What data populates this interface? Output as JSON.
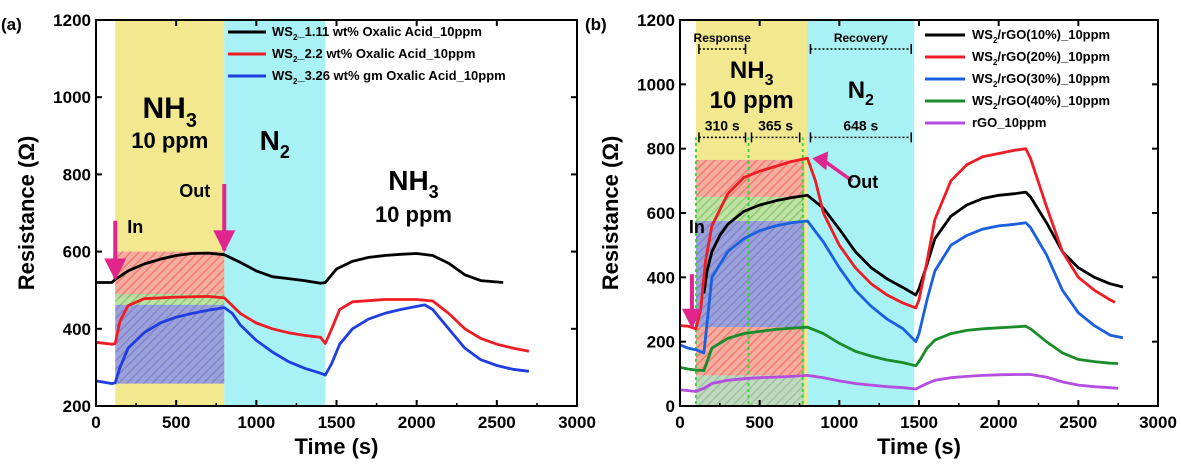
{
  "chart_data": [
    {
      "type": "line",
      "panel_label": "(a)",
      "xlabel": "Time (s)",
      "ylabel": "Resistance (Ω)",
      "xlim": [
        0,
        3000
      ],
      "ylim": [
        200,
        1200
      ],
      "xticks": [
        0,
        500,
        1000,
        1500,
        2000,
        2500,
        3000
      ],
      "yticks": [
        200,
        400,
        600,
        800,
        1000,
        1200
      ],
      "legend_position": "top-right",
      "regions": [
        {
          "x0": 120,
          "x1": 800,
          "color": "#f2e88f",
          "label_main": "NH",
          "label_sub": "3",
          "label_conc": "10 ppm"
        },
        {
          "x0": 800,
          "x1": 1430,
          "color": "#a8f1f5",
          "label_main": "N",
          "label_sub": "2",
          "label_conc": ""
        }
      ],
      "free_label": {
        "main": "NH",
        "sub": "3",
        "conc": "10 ppm"
      },
      "hatched_boxes": [
        {
          "x0": 120,
          "x1": 800,
          "y0": 480,
          "y1": 600,
          "color": "#f28c8c"
        },
        {
          "x0": 120,
          "x1": 800,
          "y0": 460,
          "y1": 490,
          "color": "#8fd48a"
        },
        {
          "x0": 120,
          "x1": 800,
          "y0": 258,
          "y1": 462,
          "color": "#8a8cf2"
        }
      ],
      "annotations": [
        {
          "text": "In",
          "x": 120,
          "arrow_from_y": 680,
          "arrow_to_y": 525,
          "color": "#2a8fd6"
        },
        {
          "text": "Out",
          "x": 800,
          "arrow_from_y": 775,
          "arrow_to_y": 598,
          "color": "#2a8fd6"
        }
      ],
      "series": [
        {
          "name_main": "WS",
          "name_sub": "2",
          "name_rest": "_1.11 wt% Oxalic Acid_10ppm",
          "color": "#000000",
          "x": [
            0,
            100,
            120,
            200,
            300,
            400,
            500,
            600,
            700,
            800,
            900,
            1000,
            1100,
            1200,
            1300,
            1400,
            1430,
            1500,
            1600,
            1700,
            1800,
            1900,
            2000,
            2100,
            2200,
            2300,
            2400,
            2540
          ],
          "y": [
            520,
            520,
            528,
            550,
            568,
            580,
            590,
            595,
            596,
            592,
            572,
            550,
            535,
            530,
            525,
            518,
            520,
            555,
            575,
            585,
            590,
            593,
            595,
            590,
            570,
            540,
            525,
            520
          ]
        },
        {
          "name_main": "WS",
          "name_sub": "2",
          "name_rest": "_2.2 wt% Oxalic Acid_10ppm",
          "color": "#ee1c24",
          "x": [
            0,
            100,
            120,
            150,
            200,
            300,
            500,
            700,
            800,
            850,
            900,
            1000,
            1100,
            1200,
            1300,
            1400,
            1430,
            1470,
            1520,
            1600,
            1800,
            2000,
            2100,
            2200,
            2300,
            2400,
            2500,
            2600,
            2700
          ],
          "y": [
            365,
            360,
            362,
            420,
            460,
            478,
            482,
            484,
            480,
            460,
            440,
            415,
            400,
            390,
            383,
            378,
            362,
            400,
            450,
            470,
            476,
            476,
            472,
            440,
            400,
            375,
            360,
            350,
            342
          ]
        },
        {
          "name_main": "WS",
          "name_sub": "2",
          "name_rest": "_3.26 wt% gm Oxalic Acid_10ppm",
          "color": "#1f3de0",
          "x": [
            0,
            100,
            120,
            150,
            200,
            300,
            400,
            500,
            600,
            700,
            800,
            850,
            900,
            1000,
            1100,
            1200,
            1300,
            1400,
            1430,
            1470,
            1520,
            1600,
            1700,
            1800,
            1900,
            2000,
            2050,
            2100,
            2200,
            2300,
            2400,
            2500,
            2600,
            2700
          ],
          "y": [
            265,
            258,
            260,
            300,
            350,
            390,
            415,
            430,
            440,
            448,
            455,
            440,
            410,
            370,
            340,
            315,
            298,
            285,
            280,
            310,
            360,
            400,
            425,
            440,
            450,
            458,
            462,
            450,
            400,
            350,
            320,
            305,
            295,
            290
          ]
        }
      ]
    },
    {
      "type": "line",
      "panel_label": "(b)",
      "xlabel": "Time (s)",
      "ylabel": "Resistance (Ω)",
      "xlim": [
        0,
        3000
      ],
      "ylim": [
        0,
        1200
      ],
      "xticks": [
        0,
        500,
        1000,
        1500,
        2000,
        2500,
        3000
      ],
      "yticks": [
        0,
        200,
        400,
        600,
        800,
        1000,
        1200
      ],
      "legend_position": "top-right",
      "regions": [
        {
          "x0": 100,
          "x1": 800,
          "color": "#f2e88f",
          "label_main": "NH",
          "label_sub": "3",
          "label_conc": "10 ppm"
        },
        {
          "x0": 800,
          "x1": 1470,
          "color": "#a8f1f5",
          "label_main": "N",
          "label_sub": "2",
          "label_conc": ""
        }
      ],
      "hatched_boxes": [
        {
          "x0": 100,
          "x1": 780,
          "y0": 650,
          "y1": 765,
          "color": "#f28c8c"
        },
        {
          "x0": 100,
          "x1": 780,
          "y0": 575,
          "y1": 650,
          "color": "#8fd48a"
        },
        {
          "x0": 100,
          "x1": 780,
          "y0": 245,
          "y1": 575,
          "color": "#8a8cf2"
        },
        {
          "x0": 100,
          "x1": 780,
          "y0": 95,
          "y1": 245,
          "color": "#f28c8c"
        },
        {
          "x0": 100,
          "x1": 780,
          "y0": 0,
          "y1": 95,
          "color": "#9ac9b5"
        }
      ],
      "vlines": [
        100,
        430,
        770
      ],
      "dimension_lines": [
        {
          "text": "Response",
          "x0": 100,
          "x1": 430,
          "y": 1110,
          "color": "#e0258c"
        },
        {
          "text": "Recovery",
          "x0": 800,
          "x1": 1470,
          "y": 1110,
          "color": "#e0258c"
        },
        {
          "text": "310 s",
          "x0": 100,
          "x1": 430,
          "y": 835,
          "color": "#c06010"
        },
        {
          "text": "365 s",
          "x0": 430,
          "x1": 770,
          "y": 835,
          "color": "#c06010"
        },
        {
          "text": "648 s",
          "x0": 800,
          "x1": 1470,
          "y": 835,
          "color": "#c06010"
        }
      ],
      "annotations": [
        {
          "text": "In",
          "x": 100,
          "arrow_from_y": 410,
          "arrow_to_y": 240,
          "color": "#2a8fd6"
        },
        {
          "text": "Out",
          "x": 800,
          "label_y": 690,
          "color": "#2a8fd6"
        }
      ],
      "series": [
        {
          "name_main": "WS",
          "name_sub": "2",
          "name_rest": "/rGO(10%)_10ppm",
          "color": "#000000",
          "x": [
            150,
            170,
            200,
            250,
            300,
            400,
            500,
            600,
            700,
            800,
            900,
            1000,
            1100,
            1200,
            1300,
            1400,
            1480,
            1500,
            1550,
            1600,
            1700,
            1800,
            1900,
            2000,
            2100,
            2170,
            2200,
            2300,
            2400,
            2500,
            2600,
            2700,
            2780
          ],
          "y": [
            350,
            420,
            480,
            530,
            565,
            605,
            625,
            638,
            648,
            655,
            615,
            550,
            480,
            430,
            395,
            368,
            345,
            365,
            440,
            520,
            590,
            625,
            645,
            655,
            660,
            665,
            650,
            570,
            480,
            430,
            400,
            380,
            370
          ]
        },
        {
          "name_main": "WS",
          "name_sub": "2",
          "name_rest": "/rGO(20%)_10ppm",
          "color": "#ee1c24",
          "x": [
            0,
            50,
            100,
            130,
            160,
            200,
            300,
            400,
            500,
            600,
            700,
            800,
            850,
            900,
            1000,
            1100,
            1200,
            1300,
            1400,
            1480,
            1500,
            1550,
            1600,
            1700,
            1800,
            1900,
            2000,
            2100,
            2170,
            2200,
            2300,
            2400,
            2500,
            2600,
            2700,
            2730
          ],
          "y": [
            250,
            248,
            240,
            300,
            450,
            560,
            660,
            710,
            730,
            745,
            760,
            770,
            700,
            600,
            500,
            430,
            380,
            345,
            320,
            305,
            330,
            450,
            580,
            700,
            750,
            775,
            785,
            795,
            800,
            770,
            620,
            480,
            400,
            360,
            330,
            322
          ]
        },
        {
          "name_main": "WS",
          "name_sub": "2",
          "name_rest": "/rGO(30%)_10ppm",
          "color": "#1a5fe0",
          "x": [
            0,
            50,
            100,
            150,
            200,
            300,
            400,
            500,
            600,
            700,
            800,
            900,
            1000,
            1100,
            1200,
            1300,
            1400,
            1480,
            1500,
            1550,
            1600,
            1700,
            1800,
            1900,
            2000,
            2100,
            2170,
            2200,
            2300,
            2400,
            2500,
            2600,
            2700,
            2780
          ],
          "y": [
            190,
            180,
            175,
            165,
            400,
            480,
            520,
            545,
            560,
            570,
            575,
            510,
            430,
            360,
            310,
            270,
            240,
            200,
            225,
            330,
            420,
            500,
            530,
            550,
            560,
            565,
            570,
            555,
            470,
            360,
            290,
            250,
            220,
            212
          ]
        },
        {
          "name_main": "WS",
          "name_sub": "2",
          "name_rest": "/rGO(40%)_10ppm",
          "color": "#1a8c2a",
          "x": [
            0,
            50,
            100,
            150,
            200,
            300,
            400,
            500,
            600,
            700,
            800,
            900,
            1000,
            1100,
            1200,
            1300,
            1400,
            1480,
            1500,
            1550,
            1600,
            1700,
            1800,
            1900,
            2000,
            2100,
            2170,
            2200,
            2300,
            2400,
            2500,
            2600,
            2700,
            2750
          ],
          "y": [
            120,
            115,
            112,
            110,
            180,
            210,
            225,
            232,
            238,
            242,
            245,
            225,
            195,
            170,
            155,
            143,
            135,
            125,
            138,
            180,
            205,
            225,
            235,
            240,
            243,
            246,
            248,
            240,
            200,
            165,
            145,
            138,
            133,
            132
          ]
        },
        {
          "name_main": "rGO_10ppm",
          "name_sub": "",
          "name_rest": "",
          "color": "#b44de0",
          "x": [
            0,
            50,
            100,
            150,
            200,
            300,
            400,
            500,
            600,
            700,
            800,
            900,
            1000,
            1100,
            1200,
            1300,
            1400,
            1480,
            1500,
            1550,
            1600,
            1700,
            1800,
            1900,
            2000,
            2100,
            2200,
            2300,
            2400,
            2500,
            2600,
            2700,
            2750
          ],
          "y": [
            50,
            48,
            45,
            55,
            70,
            80,
            85,
            88,
            90,
            92,
            95,
            88,
            78,
            70,
            65,
            60,
            57,
            53,
            58,
            70,
            80,
            88,
            92,
            95,
            97,
            98,
            98,
            90,
            75,
            65,
            60,
            57,
            55
          ]
        }
      ]
    }
  ]
}
